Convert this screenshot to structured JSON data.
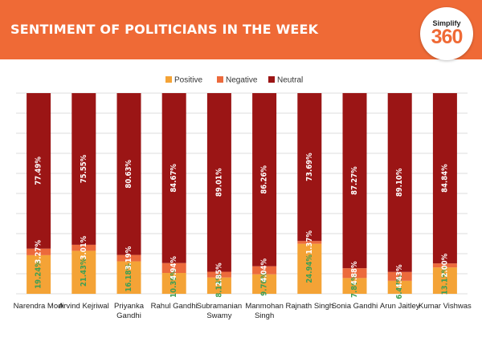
{
  "header": {
    "title": "SENTIMENT OF POLITICIANS IN THE WEEK",
    "logo_top": "Simplify",
    "logo_num": "360",
    "bg_color": "#ef6a36"
  },
  "chart_data": {
    "type": "bar",
    "stacked": true,
    "title": "SENTIMENT OF POLITICIANS IN THE WEEK",
    "xlabel": "",
    "ylabel": "",
    "ylim": [
      0,
      100
    ],
    "grid": true,
    "legend_position": "top-center",
    "categories": [
      [
        "Narendra Modi"
      ],
      [
        "Arvind Kejriwal"
      ],
      [
        "Priyanka",
        "Gandhi"
      ],
      [
        "Rahul Gandhi"
      ],
      [
        "Subramanian",
        "Swamy"
      ],
      [
        "Manmohan",
        "Singh"
      ],
      [
        "Rajnath Singh"
      ],
      [
        "Sonia Gandhi"
      ],
      [
        "Arun Jaitley"
      ],
      [
        "Kumar Vishwas"
      ]
    ],
    "series": [
      {
        "name": "Positive",
        "color": "#f4a336",
        "label_color": "#3d9f55",
        "values": [
          19.24,
          21.43,
          16.18,
          10.39,
          8.14,
          9.7,
          24.94,
          7.86,
          6.47,
          13.15
        ],
        "labels": [
          "19.24%",
          "21.43%",
          "16.18%",
          "10.39%",
          "8.14%",
          "9.70%",
          "24.94%",
          "7.86%",
          "6.47%",
          "13.15%"
        ]
      },
      {
        "name": "Negative",
        "color": "#ec6a3c",
        "label_color": "#ffffff",
        "values": [
          3.27,
          3.01,
          3.19,
          4.94,
          2.85,
          4.04,
          1.37,
          4.88,
          4.43,
          2.0
        ],
        "labels": [
          "3.27%",
          "3.01%",
          "3.19%",
          "4.94%",
          "2.85%",
          "4.04%",
          "1.37%",
          "4.88%",
          "4.43%",
          "2.00%"
        ]
      },
      {
        "name": "Neutral",
        "color": "#9b1515",
        "label_color": "#ffffff",
        "values": [
          77.49,
          75.55,
          80.63,
          84.67,
          89.01,
          86.26,
          73.69,
          87.27,
          89.1,
          84.84
        ],
        "labels": [
          "77.49%",
          "75.55%",
          "80.63%",
          "84.67%",
          "89.01%",
          "86.26%",
          "73.69%",
          "87.27%",
          "89.10%",
          "84.84%"
        ]
      }
    ]
  }
}
